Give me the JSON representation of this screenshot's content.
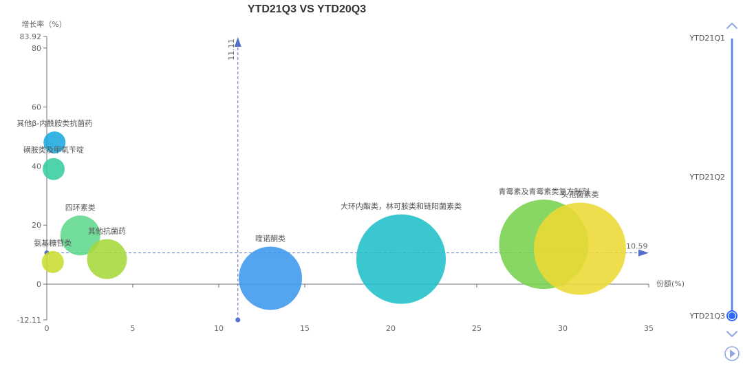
{
  "chart_data": {
    "type": "scatter",
    "title": "YTD21Q3 VS YTD20Q3",
    "xlabel": "份额(%)",
    "ylabel": "增长率（%）",
    "xlim": [
      0,
      35
    ],
    "ylim": [
      -12.11,
      83.92
    ],
    "x_ticks": [
      "0",
      "5",
      "10",
      "15",
      "20",
      "25",
      "30",
      "35"
    ],
    "y_ticks": [
      "-12.11",
      "0",
      "20",
      "40",
      "60",
      "80",
      "83.92"
    ],
    "bubbles": [
      {
        "name": "其他β-内酰胺类抗菌药",
        "x": 0.45,
        "y": 48,
        "r": 16,
        "color": "#1aa8df"
      },
      {
        "name": "磺胺类及甲氧苄啶",
        "x": 0.4,
        "y": 39,
        "r": 16,
        "color": "#37cda1"
      },
      {
        "name": "四环素类",
        "x": 1.95,
        "y": 16.5,
        "r": 29,
        "color": "#5fd88c"
      },
      {
        "name": "其他抗菌药",
        "x": 3.5,
        "y": 8.5,
        "r": 29,
        "color": "#a6d83b"
      },
      {
        "name": "氨基糖苷类",
        "x": 0.35,
        "y": 7.5,
        "r": 16,
        "color": "#c9dc2f"
      },
      {
        "name": "喹诺酮类",
        "x": 13.0,
        "y": 2.0,
        "r": 46,
        "color": "#3d97ed"
      },
      {
        "name": "大环内酯类，林可胺类和链阳菌素类",
        "x": 20.6,
        "y": 8.5,
        "r": 65,
        "color": "#1fbfca"
      },
      {
        "name": "青霉素及青霉素类复方制剂",
        "x": 28.9,
        "y": 13.5,
        "r": 65,
        "color": "#78d24e"
      },
      {
        "name": "头孢菌素类",
        "x": 31.0,
        "y": 12.0,
        "r": 67,
        "color": "#ecd934"
      }
    ],
    "ref_x": {
      "value": 11.11,
      "label": "11.11"
    },
    "ref_y": {
      "value": 10.59,
      "label": "10.59"
    }
  },
  "timeline": {
    "items": [
      "YTD21Q1",
      "YTD21Q2",
      "YTD21Q3"
    ],
    "selected": "YTD21Q3"
  },
  "colors": {
    "axis": "#6e7079",
    "ref_line": "#5470c6",
    "timeline": "#8fa6de",
    "timeline_handle": "#316bf3"
  }
}
